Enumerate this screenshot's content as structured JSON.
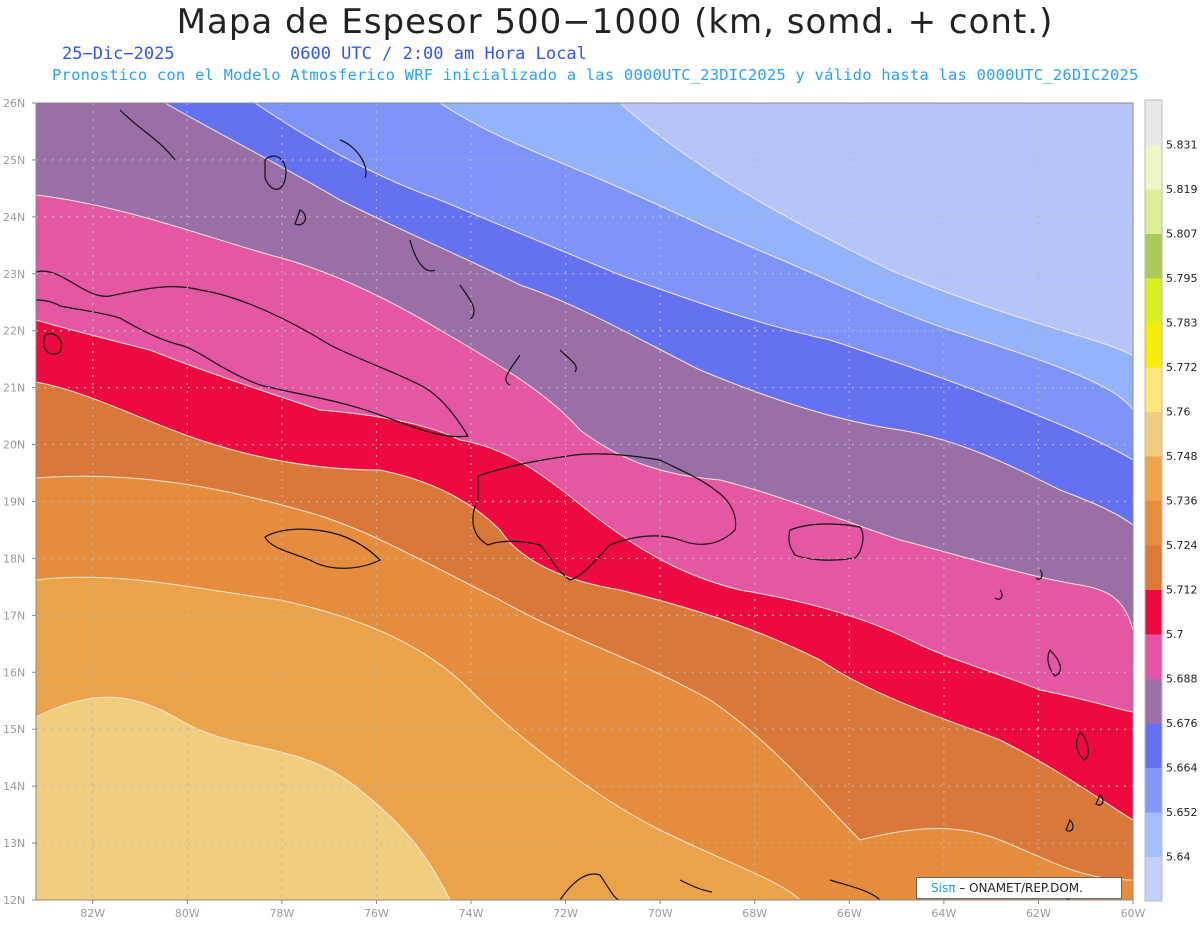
{
  "header": {
    "title": "Mapa de Espesor 500−1000 (km, somd. + cont.)",
    "date": "25−Dic−2025",
    "time": "0600 UTC / 2:00 am Hora Local",
    "subtitle": "Pronostico con el Modelo Atmosferico WRF inicializado a las 0000UTC_23DIC2025 y válido hasta las  0000UTC_26DIC2025"
  },
  "map": {
    "lat_labels": [
      "26N",
      "25N",
      "24N",
      "23N",
      "22N",
      "21N",
      "20N",
      "19N",
      "18N",
      "17N",
      "16N",
      "15N",
      "14N",
      "13N",
      "12N"
    ],
    "lon_labels": [
      "82W",
      "80W",
      "78W",
      "76W",
      "74W",
      "72W",
      "70W",
      "68W",
      "66W",
      "64W",
      "62W",
      "60W"
    ],
    "lat_range": [
      12,
      26
    ],
    "lon_range": [
      -83.2,
      -60
    ],
    "grid": true,
    "band_colors": [
      "#f1cd7f",
      "#eaa349",
      "#e58c3d",
      "#da783a",
      "#ee0a40",
      "#e557a3",
      "#9a6fa8",
      "#6471f0",
      "#7f94fa",
      "#93b3fd",
      "#b5c5fc"
    ]
  },
  "colorbar": {
    "levels": [
      "5.64",
      "5.652",
      "5.664",
      "5.676",
      "5.688",
      "5.7",
      "5.712",
      "5.724",
      "5.736",
      "5.748",
      "5.76",
      "5.772",
      "5.783",
      "5.795",
      "5.807",
      "5.819",
      "5.831"
    ],
    "colors": [
      "#c4cffa",
      "#a6bdfc",
      "#8198f7",
      "#6470ee",
      "#9c72a6",
      "#e455a4",
      "#ee0840",
      "#dd7a3a",
      "#e68e3f",
      "#eea54c",
      "#f2cc80",
      "#fde67a",
      "#f6ee04",
      "#d9ee23",
      "#a8ca58",
      "#dcef97",
      "#eef5c8",
      "#e8e8e8"
    ]
  },
  "credit": {
    "logo": "Sisπ",
    "text": " –  ONAMET/REP.DOM."
  }
}
